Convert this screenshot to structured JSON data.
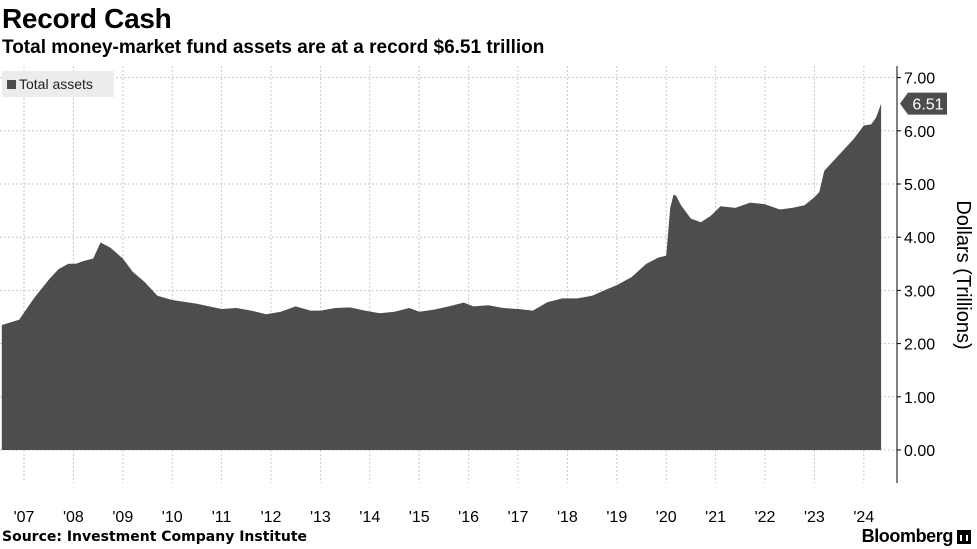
{
  "header": {
    "title": "Record Cash",
    "subtitle": "Total money-market fund assets are at a record $6.51 trillion"
  },
  "footer": {
    "source": "Source: Investment Company Institute",
    "brand": "Bloomberg"
  },
  "colors": {
    "area": "#4d4d4d",
    "grid": "#c8c8c8",
    "background": "#ffffff"
  },
  "chart_data": {
    "type": "area",
    "ylabel": "Dollars (Trillions)",
    "ylim": [
      -0.5,
      7.2
    ],
    "y_ticks": [
      0,
      1,
      2,
      3,
      4,
      5,
      6,
      7
    ],
    "y_tick_labels": [
      "0.00",
      "1.00",
      "2.00",
      "3.00",
      "4.00",
      "5.00",
      "6.00",
      "7.00"
    ],
    "x_ticks": [
      2007,
      2008,
      2009,
      2010,
      2011,
      2012,
      2013,
      2014,
      2015,
      2016,
      2017,
      2018,
      2019,
      2020,
      2021,
      2022,
      2023,
      2024
    ],
    "x_tick_labels": [
      "'07",
      "'08",
      "'09",
      "'10",
      "'11",
      "'12",
      "'13",
      "'14",
      "'15",
      "'16",
      "'17",
      "'18",
      "'19",
      "'20",
      "'21",
      "'22",
      "'23",
      "'24"
    ],
    "grid": true,
    "legend": {
      "position": "top-left",
      "entries": [
        "Total assets"
      ]
    },
    "last_value_label": "6.51",
    "series": [
      {
        "name": "Total assets",
        "x": [
          2006.55,
          2006.9,
          2007.2,
          2007.5,
          2007.7,
          2007.9,
          2008.05,
          2008.2,
          2008.4,
          2008.55,
          2008.75,
          2009.0,
          2009.2,
          2009.45,
          2009.7,
          2010.0,
          2010.5,
          2011.0,
          2011.3,
          2011.6,
          2011.9,
          2012.2,
          2012.5,
          2012.8,
          2013.0,
          2013.3,
          2013.6,
          2013.9,
          2014.2,
          2014.5,
          2014.8,
          2015.0,
          2015.3,
          2015.6,
          2015.9,
          2016.1,
          2016.4,
          2016.7,
          2017.0,
          2017.3,
          2017.6,
          2017.9,
          2018.2,
          2018.5,
          2018.8,
          2019.0,
          2019.3,
          2019.6,
          2019.85,
          2020.0,
          2020.08,
          2020.15,
          2020.2,
          2020.3,
          2020.5,
          2020.7,
          2020.9,
          2021.1,
          2021.4,
          2021.7,
          2022.0,
          2022.3,
          2022.55,
          2022.8,
          2023.0,
          2023.1,
          2023.2,
          2023.5,
          2023.8,
          2024.0,
          2024.15,
          2024.25,
          2024.35
        ],
        "values": [
          2.35,
          2.45,
          2.85,
          3.2,
          3.4,
          3.5,
          3.5,
          3.55,
          3.6,
          3.9,
          3.8,
          3.6,
          3.35,
          3.15,
          2.9,
          2.82,
          2.75,
          2.65,
          2.67,
          2.62,
          2.55,
          2.6,
          2.7,
          2.62,
          2.62,
          2.67,
          2.68,
          2.62,
          2.57,
          2.6,
          2.67,
          2.6,
          2.64,
          2.7,
          2.77,
          2.7,
          2.72,
          2.67,
          2.65,
          2.62,
          2.78,
          2.85,
          2.85,
          2.9,
          3.02,
          3.1,
          3.25,
          3.5,
          3.62,
          3.65,
          4.55,
          4.8,
          4.78,
          4.6,
          4.35,
          4.28,
          4.4,
          4.58,
          4.55,
          4.65,
          4.62,
          4.52,
          4.55,
          4.6,
          4.75,
          4.85,
          5.25,
          5.55,
          5.85,
          6.1,
          6.12,
          6.25,
          6.51
        ]
      }
    ]
  }
}
